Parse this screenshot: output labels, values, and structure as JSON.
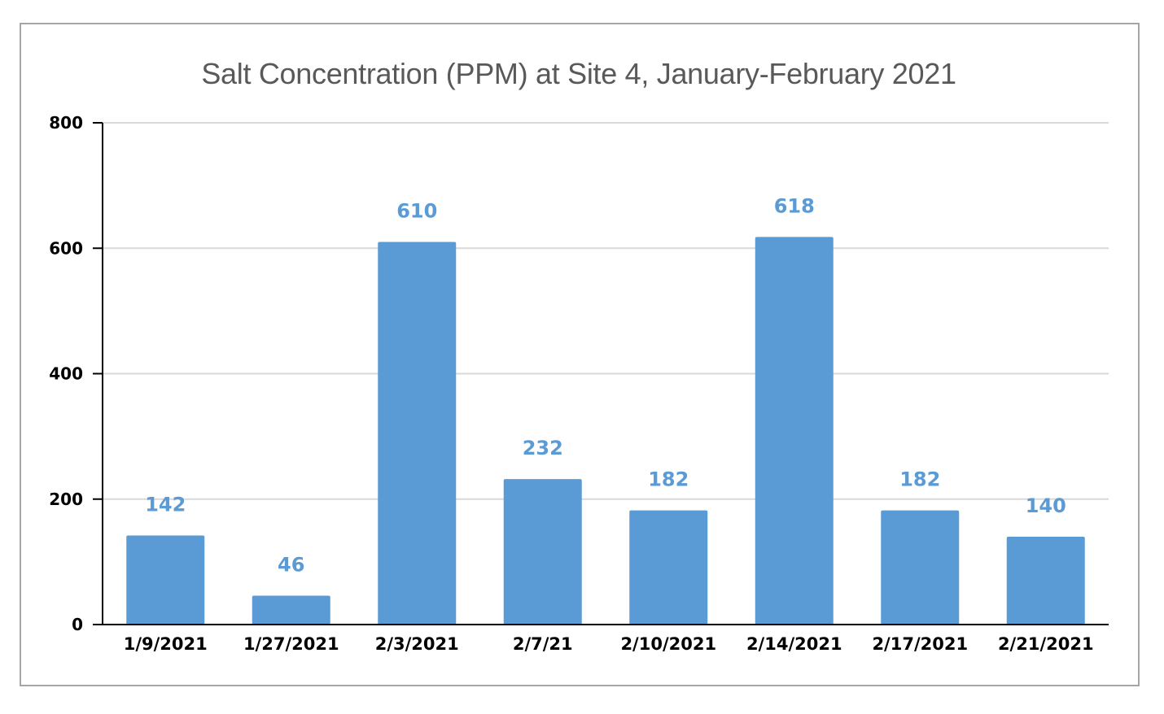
{
  "chart_data": {
    "type": "bar",
    "title": "Salt Concentration (PPM) at Site 4, January-February 2021",
    "xlabel": "",
    "ylabel": "",
    "categories": [
      "1/9/2021",
      "1/27/2021",
      "2/3/2021",
      "2/7/21",
      "2/10/2021",
      "2/14/2021",
      "2/17/2021",
      "2/21/2021"
    ],
    "values": [
      142,
      46,
      610,
      232,
      182,
      618,
      182,
      140
    ],
    "data_labels": [
      "142",
      "46",
      "610",
      "232",
      "182",
      "618",
      "182",
      "140"
    ],
    "ylim": [
      0,
      800
    ],
    "yticks": [
      0,
      200,
      400,
      600,
      800
    ],
    "ytick_labels": [
      "0",
      "200",
      "400",
      "600",
      "800"
    ],
    "grid": true,
    "legend": "none",
    "bar_color": "#5b9bd5",
    "label_color": "#5b9bd5",
    "grid_color": "#d9d9d9",
    "axis_color": "#000000",
    "title_color": "#595959"
  }
}
